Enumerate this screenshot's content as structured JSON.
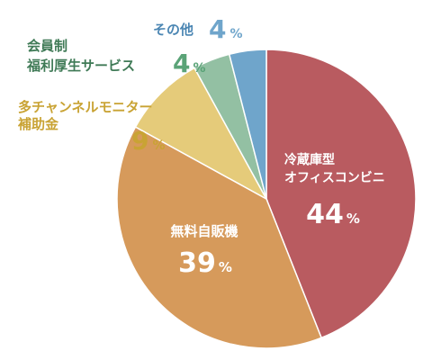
{
  "chart_data": {
    "type": "pie",
    "title": "",
    "start": "top",
    "direction": "clockwise",
    "slices": [
      {
        "name": "冷蔵庫型\nオフィスコンビニ",
        "value": 44,
        "label": "44",
        "unit": "%",
        "color": "#b95b60"
      },
      {
        "name": "無料自販機",
        "value": 39,
        "label": "39",
        "unit": "%",
        "color": "#d69a5b"
      },
      {
        "name": "多チャンネルモニター\n補助金",
        "value": 9,
        "label": "9",
        "unit": "%",
        "color": "#e5cb7a"
      },
      {
        "name": "会員制\n福利厚生サービス",
        "value": 4,
        "label": "4",
        "unit": "%",
        "color": "#93c0a3"
      },
      {
        "name": "その他",
        "value": 4,
        "label": "4",
        "unit": "%",
        "color": "#6fa5cb"
      }
    ]
  }
}
